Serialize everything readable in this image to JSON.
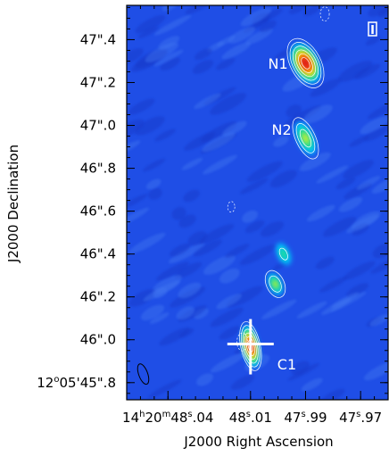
{
  "chart_data": {
    "type": "heatmap",
    "stokes_label": "I",
    "xlabel": "J2000 Right Ascension",
    "ylabel": "J2000 Declination",
    "x_ticks": [
      {
        "value": 48.04,
        "label_parts": [
          "14",
          "h",
          "20",
          "m",
          "48",
          "s",
          ".04"
        ]
      },
      {
        "value": 48.01,
        "label_parts": [
          "48",
          "s",
          ".01"
        ]
      },
      {
        "value": 47.99,
        "label_parts": [
          "47",
          "s",
          ".99"
        ]
      },
      {
        "value": 47.97,
        "label_parts": [
          "47",
          "s",
          ".97"
        ]
      }
    ],
    "y_ticks": [
      {
        "value": 45.8,
        "label": "12°05′45″.8",
        "label_parts": [
          "12",
          "o",
          "05'45\".8"
        ]
      },
      {
        "value": 46.0,
        "label": "46″.0",
        "label_parts": [
          "46\".0"
        ]
      },
      {
        "value": 46.2,
        "label": "46″.2",
        "label_parts": [
          "46\".2"
        ]
      },
      {
        "value": 46.4,
        "label": "46″.4",
        "label_parts": [
          "46\".4"
        ]
      },
      {
        "value": 46.6,
        "label": "46″.6",
        "label_parts": [
          "46\".6"
        ]
      },
      {
        "value": 46.8,
        "label": "46″.8",
        "label_parts": [
          "46\".8"
        ]
      },
      {
        "value": 47.0,
        "label": "47″.0",
        "label_parts": [
          "47\".0"
        ]
      },
      {
        "value": 47.2,
        "label": "47″.2",
        "label_parts": [
          "47\".2"
        ]
      },
      {
        "value": 47.4,
        "label": "47″.4",
        "label_parts": [
          "47\".4"
        ]
      }
    ],
    "xlim": [
      48.055,
      47.96
    ],
    "ylim": [
      45.72,
      47.56
    ],
    "x_reversed": true,
    "background_color": "#1f4ee6",
    "colormap": [
      "#0a2fd0",
      "#00c8ff",
      "#21e08a",
      "#f2f21a",
      "#ff8a00",
      "#e0161d"
    ],
    "sources": [
      {
        "name": "N1",
        "ra": 47.99,
        "dec": 47.29,
        "peak": 1.0
      },
      {
        "name": "N2",
        "ra": 47.99,
        "dec": 46.94,
        "peak": 0.35
      },
      {
        "name": "C1",
        "ra": 48.01,
        "dec": 45.97,
        "peak": 0.9
      }
    ],
    "extra_components": [
      {
        "ra": 48.001,
        "dec": 46.26,
        "peak": 0.3
      },
      {
        "ra": 47.998,
        "dec": 46.4,
        "peak": 0.18
      }
    ],
    "cross_marker": {
      "ra": 48.01,
      "dec": 45.98,
      "color": "#ffffff"
    },
    "beam_ellipse": {
      "ra": 48.049,
      "dec": 45.84
    }
  }
}
